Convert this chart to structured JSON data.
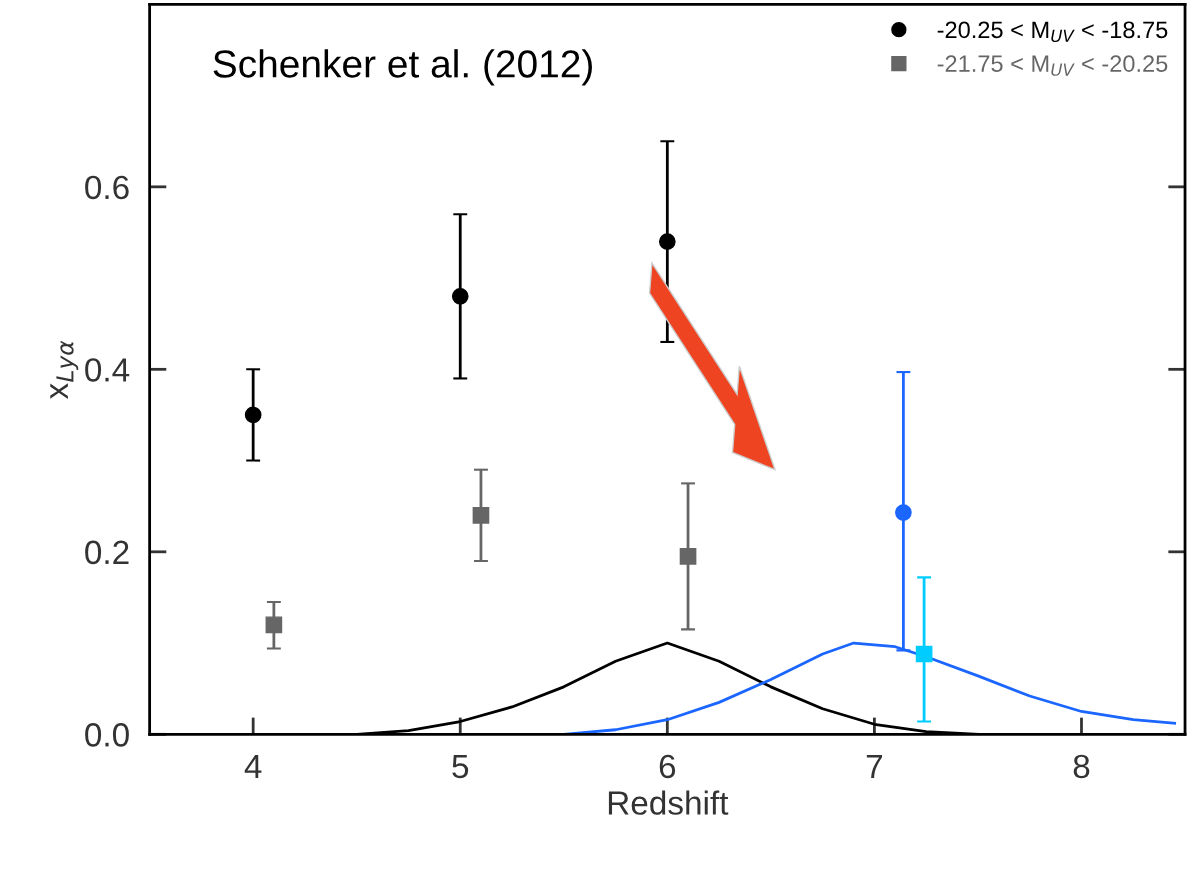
{
  "chart_data": {
    "type": "scatter",
    "xlabel": "Redshift",
    "ylabel": "x$_{Lyα}$",
    "xlim": [
      3.5,
      8.5
    ],
    "ylim": [
      0,
      0.8
    ],
    "xticks": [
      4,
      5,
      6,
      7,
      8
    ],
    "yticks": [
      {
        "value": 0,
        "label": "0.0"
      },
      0.2,
      0.4,
      0.6
    ],
    "grid": false,
    "legend": "top right",
    "annotations": [
      {
        "text": "Schenker et al. (2012)"
      }
    ],
    "series": [
      {
        "name": "-20.25 < M$_{UV}$ < -18.75",
        "color": "#000000",
        "marker": "circle",
        "x": [
          4,
          5,
          6
        ],
        "values": [
          0.35,
          0.48,
          0.54
        ],
        "errors": [
          [
            0.3,
            0.4
          ],
          [
            0.39,
            0.57
          ],
          [
            0.43,
            0.65
          ]
        ]
      },
      {
        "name": "-21.75 < M$_{UV}$ < -20.25",
        "color": "#666666",
        "marker": "square",
        "x": [
          4.1,
          5.1,
          6.1
        ],
        "values": [
          0.12,
          0.24,
          0.195
        ],
        "errors": [
          [
            0.094,
            0.145
          ],
          [
            0.19,
            0.29
          ],
          [
            0.115,
            0.275
          ]
        ]
      },
      {
        "color": "#1a66ff",
        "marker": "circle",
        "x": [
          7.14
        ],
        "values": [
          0.243
        ],
        "errors": [
          [
            0.092,
            0.397
          ]
        ]
      },
      {
        "color": "#00ccff",
        "marker": "square",
        "x": [
          7.24
        ],
        "values": [
          0.088
        ],
        "errors": [
          [
            0.014,
            0.172
          ]
        ]
      },
      {
        "type": "line",
        "color": "#000000",
        "marker": "none",
        "x": [
          4.5,
          4.75,
          5.0,
          5.25,
          5.5,
          5.75,
          6.0,
          6.25,
          6.5,
          6.75,
          7.0,
          7.25,
          7.5
        ],
        "values": [
          0.0,
          0.004,
          0.014,
          0.03,
          0.052,
          0.08,
          0.1,
          0.08,
          0.052,
          0.028,
          0.011,
          0.003,
          0.0
        ]
      },
      {
        "type": "line",
        "color": "#1a66ff",
        "marker": "none",
        "x": [
          5.5,
          5.75,
          6.0,
          6.25,
          6.5,
          6.75,
          6.9,
          7.1,
          7.25,
          7.5,
          7.75,
          8.0,
          8.25,
          8.45
        ],
        "values": [
          0.0,
          0.005,
          0.016,
          0.035,
          0.06,
          0.088,
          0.1,
          0.096,
          0.085,
          0.064,
          0.042,
          0.025,
          0.016,
          0.012
        ]
      }
    ]
  }
}
